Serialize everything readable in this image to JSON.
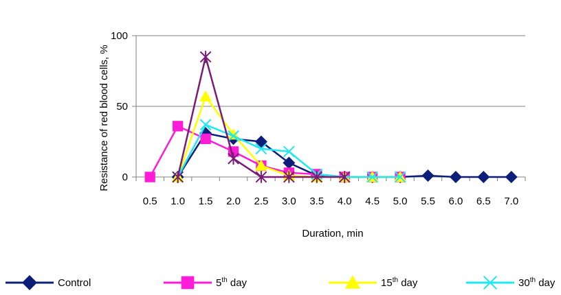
{
  "chart_data": {
    "type": "line",
    "title": "",
    "xlabel": "Duration, min",
    "ylabel": "Resistance of red blood cells, %",
    "categories": [
      "0.5",
      "1.0",
      "1.5",
      "2.0",
      "2.5",
      "3.0",
      "3.5",
      "4.0",
      "4.5",
      "5.0",
      "5.5",
      "6.0",
      "6.5",
      "7.0"
    ],
    "ylim": [
      0,
      100
    ],
    "yticks": [
      "0",
      "50",
      "100"
    ],
    "grid": true,
    "legend_position": "bottom",
    "series": [
      {
        "name": "Control",
        "legend_base": "Control",
        "legend_sup": "",
        "legend_suffix": "",
        "color": "#0b1f7a",
        "marker": "diamond",
        "values": [
          null,
          0,
          31,
          27,
          25,
          10,
          1,
          0,
          0,
          0,
          1,
          0,
          0,
          0
        ]
      },
      {
        "name": "5th day",
        "legend_base": "5",
        "legend_sup": "th",
        "legend_suffix": " day",
        "color": "#ff1cd6",
        "marker": "square",
        "values": [
          0,
          36,
          27,
          18,
          8,
          3,
          2,
          0,
          0,
          0,
          null,
          null,
          null,
          null
        ]
      },
      {
        "name": "15th day",
        "legend_base": "15",
        "legend_sup": "th",
        "legend_suffix": " day",
        "color": "#ffff00",
        "marker": "triangle",
        "values": [
          null,
          0,
          57,
          30,
          8,
          1,
          0,
          0,
          0,
          0,
          null,
          null,
          null,
          null
        ]
      },
      {
        "name": "30th day",
        "legend_base": "30",
        "legend_sup": "th",
        "legend_suffix": " day",
        "color": "#1ee8f0",
        "marker": "x",
        "values": [
          null,
          0,
          37,
          29,
          20,
          18,
          2,
          0,
          0,
          0,
          null,
          null,
          null,
          null
        ]
      },
      {
        "name": "",
        "legend_base": "",
        "legend_sup": "",
        "legend_suffix": "",
        "color": "#7a1a78",
        "marker": "star",
        "values": [
          null,
          0,
          85,
          13,
          0,
          0,
          0,
          0,
          null,
          null,
          null,
          null,
          null,
          null
        ]
      }
    ]
  }
}
